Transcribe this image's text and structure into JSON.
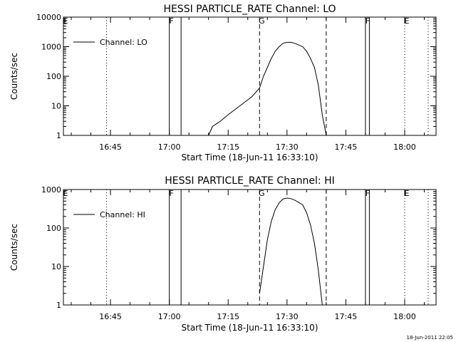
{
  "chart_data": [
    {
      "type": "line",
      "title": "HESSI PARTICLE_RATE Channel: LO",
      "xlabel": "Start Time (18-Jun-11 16:33:10)",
      "ylabel": "Counts/sec",
      "y_scale": "log",
      "ylim": [
        1,
        10000
      ],
      "xlim": [
        "16:33",
        "18:08"
      ],
      "x_ticks": [
        "16:45",
        "17:00",
        "17:15",
        "17:30",
        "17:45",
        "18:00"
      ],
      "y_ticks": [
        "1",
        "10",
        "100",
        "1000",
        "10000"
      ],
      "legend": {
        "position": "top-left",
        "entries": [
          "Channel: LO"
        ]
      },
      "grid": false,
      "markers": [
        {
          "time": "16:33",
          "label": "E",
          "style": "dotted"
        },
        {
          "time": "16:44",
          "label": "",
          "style": "dotted"
        },
        {
          "time": "17:00",
          "label": "F",
          "style": "solid"
        },
        {
          "time": "17:03",
          "label": "",
          "style": "solid"
        },
        {
          "time": "17:23",
          "label": "G",
          "style": "dashed"
        },
        {
          "time": "17:40",
          "label": "",
          "style": "dashed"
        },
        {
          "time": "17:50",
          "label": "F",
          "style": "solid"
        },
        {
          "time": "17:51",
          "label": "",
          "style": "solid"
        },
        {
          "time": "18:00",
          "label": "E",
          "style": "dotted"
        },
        {
          "time": "18:06",
          "label": "",
          "style": "dotted"
        }
      ],
      "series": [
        {
          "name": "Channel: LO",
          "points": [
            [
              "17:10",
              1
            ],
            [
              "17:11",
              2
            ],
            [
              "17:13",
              3
            ],
            [
              "17:15",
              5
            ],
            [
              "17:18",
              10
            ],
            [
              "17:21",
              20
            ],
            [
              "17:23",
              40
            ],
            [
              "17:24",
              100
            ],
            [
              "17:25",
              200
            ],
            [
              "17:26",
              400
            ],
            [
              "17:27",
              700
            ],
            [
              "17:28",
              1000
            ],
            [
              "17:29",
              1300
            ],
            [
              "17:30",
              1400
            ],
            [
              "17:31",
              1400
            ],
            [
              "17:32",
              1300
            ],
            [
              "17:34",
              1000
            ],
            [
              "17:35",
              700
            ],
            [
              "17:36",
              400
            ],
            [
              "17:37",
              200
            ],
            [
              "17:38",
              50
            ],
            [
              "17:39",
              5
            ],
            [
              "17:40",
              1
            ]
          ]
        }
      ]
    },
    {
      "type": "line",
      "title": "HESSI PARTICLE_RATE Channel: HI",
      "xlabel": "Start Time (18-Jun-11 16:33:10)",
      "ylabel": "Counts/sec",
      "y_scale": "log",
      "ylim": [
        1,
        1000
      ],
      "xlim": [
        "16:33",
        "18:08"
      ],
      "x_ticks": [
        "16:45",
        "17:00",
        "17:15",
        "17:30",
        "17:45",
        "18:00"
      ],
      "y_ticks": [
        "1",
        "10",
        "100",
        "1000"
      ],
      "legend": {
        "position": "top-left",
        "entries": [
          "Channel: HI"
        ]
      },
      "grid": false,
      "markers": [
        {
          "time": "16:33",
          "label": "E",
          "style": "dotted"
        },
        {
          "time": "16:44",
          "label": "",
          "style": "dotted"
        },
        {
          "time": "17:00",
          "label": "F",
          "style": "solid"
        },
        {
          "time": "17:03",
          "label": "",
          "style": "solid"
        },
        {
          "time": "17:23",
          "label": "G",
          "style": "dashed"
        },
        {
          "time": "17:40",
          "label": "",
          "style": "dashed"
        },
        {
          "time": "17:50",
          "label": "F",
          "style": "solid"
        },
        {
          "time": "17:51",
          "label": "",
          "style": "solid"
        },
        {
          "time": "18:00",
          "label": "E",
          "style": "dotted"
        },
        {
          "time": "18:06",
          "label": "",
          "style": "dotted"
        }
      ],
      "series": [
        {
          "name": "Channel: HI",
          "points": [
            [
              "17:23",
              2
            ],
            [
              "17:24",
              10
            ],
            [
              "17:25",
              50
            ],
            [
              "17:26",
              150
            ],
            [
              "17:27",
              300
            ],
            [
              "17:28",
              450
            ],
            [
              "17:29",
              570
            ],
            [
              "17:30",
              600
            ],
            [
              "17:31",
              580
            ],
            [
              "17:32",
              530
            ],
            [
              "17:34",
              400
            ],
            [
              "17:35",
              250
            ],
            [
              "17:36",
              120
            ],
            [
              "17:37",
              40
            ],
            [
              "17:38",
              8
            ],
            [
              "17:39",
              1
            ]
          ]
        }
      ]
    }
  ],
  "footer": {
    "timestamp": "18-Jun-2011 22:05"
  }
}
